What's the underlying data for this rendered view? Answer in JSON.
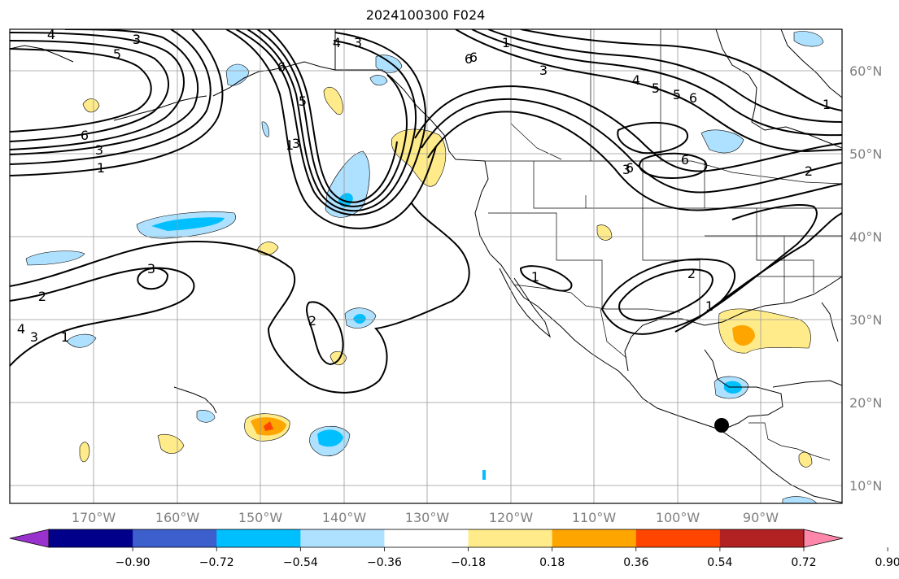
{
  "title": "2024100300 F024",
  "lat_labels": [
    "60°N",
    "50°N",
    "40°N",
    "30°N",
    "20°N",
    "10°N"
  ],
  "lon_labels": [
    "170°W",
    "160°W",
    "150°W",
    "140°W",
    "130°W",
    "120°W",
    "110°W",
    "100°W",
    "90°W"
  ],
  "colorbar": {
    "ticks": [
      "−0.90",
      "−0.72",
      "−0.54",
      "−0.36",
      "−0.18",
      "0.18",
      "0.36",
      "0.54",
      "0.72",
      "0.90"
    ],
    "colors": [
      "#9932cc",
      "#00008b",
      "#3c5fcd",
      "#00bfff",
      "#aee1ff",
      "#ffffff",
      "#ffeb8a",
      "#ffa500",
      "#ff4500",
      "#b22222",
      "#ff88aa"
    ]
  },
  "contour_labels": [
    "4",
    "3",
    "5",
    "6",
    "3",
    "1",
    "6",
    "3",
    "4",
    "5",
    "3",
    "1",
    "6",
    "3",
    "4",
    "5",
    "6",
    "1",
    "6",
    "2",
    "3",
    "3",
    "2",
    "4",
    "3",
    "1",
    "2",
    "1",
    "2",
    "1",
    "5",
    "1",
    "6",
    "3",
    "6"
  ],
  "marker": "station-dot"
}
